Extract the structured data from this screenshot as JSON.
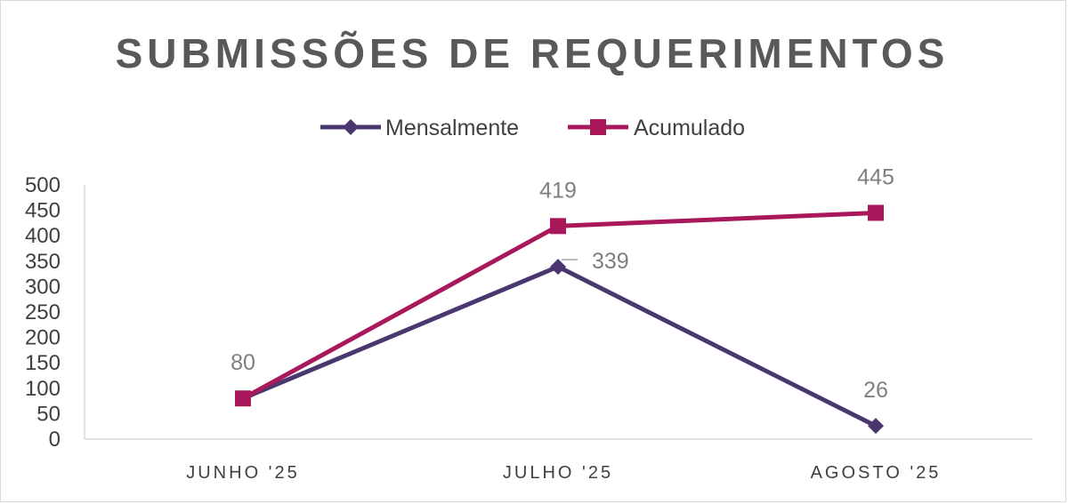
{
  "chart_data": {
    "type": "line",
    "title": "SUBMISSÕES DE REQUERIMENTOS",
    "categories": [
      "JUNHO '25",
      "JULHO '25",
      "AGOSTO '25"
    ],
    "ylim": [
      0,
      500
    ],
    "yticks": [
      0,
      50,
      100,
      150,
      200,
      250,
      300,
      350,
      400,
      450,
      500
    ],
    "grid": false,
    "legend_position": "top",
    "series": [
      {
        "name": "Mensalmente",
        "values": [
          80,
          339,
          26
        ],
        "color": "#4b3770",
        "marker": "diamond",
        "labels": [
          "",
          "339",
          "26"
        ]
      },
      {
        "name": "Acumulado",
        "values": [
          80,
          419,
          445
        ],
        "color": "#a8185a",
        "marker": "square",
        "labels": [
          "80",
          "419",
          "445"
        ]
      }
    ]
  }
}
